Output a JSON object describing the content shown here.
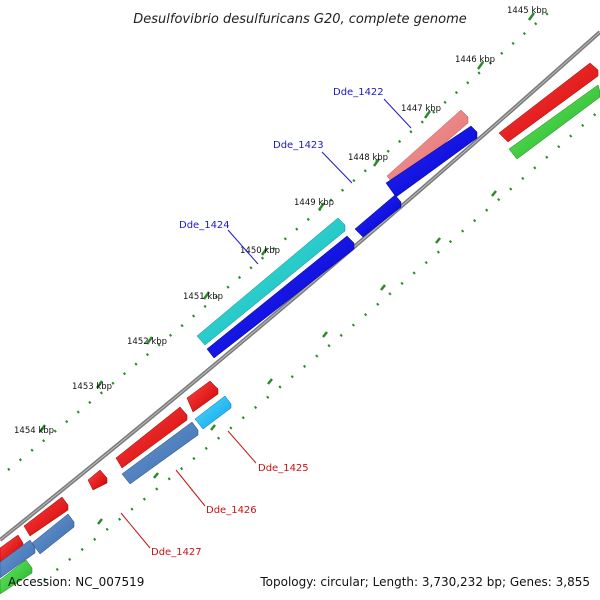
{
  "title": "Desulfovibrio desulfuricans G20, complete genome",
  "footer": {
    "accession": "Accession: NC_007519",
    "summary": "Topology: circular; Length: 3,730,232 bp; Genes: 3,855"
  },
  "ticks": [
    "1445 kbp",
    "1446 kbp",
    "1447 kbp",
    "1448 kbp",
    "1449 kbp",
    "1450 kbp",
    "1451 kbp",
    "1452 kbp",
    "1453 kbp",
    "1454 kbp"
  ],
  "gene_labels": {
    "Dde_1422": "Dde_1422",
    "Dde_1423": "Dde_1423",
    "Dde_1424": "Dde_1424",
    "Dde_1425": "Dde_1425",
    "Dde_1426": "Dde_1426",
    "Dde_1427": "Dde_1427"
  },
  "colors": {
    "backbone": "#7a7a7a",
    "forward_cds": "#ee1111",
    "forward_cds_highlight": "#ee8888",
    "forward_cds_teal": "#22cccc",
    "reverse_cds": "#1111ee",
    "reverse_cds_steel": "#4a80c0",
    "reverse_cds_sky": "#22bbff",
    "other_feature": "#33cc33",
    "tick_marks": "#2a8a2a"
  }
}
